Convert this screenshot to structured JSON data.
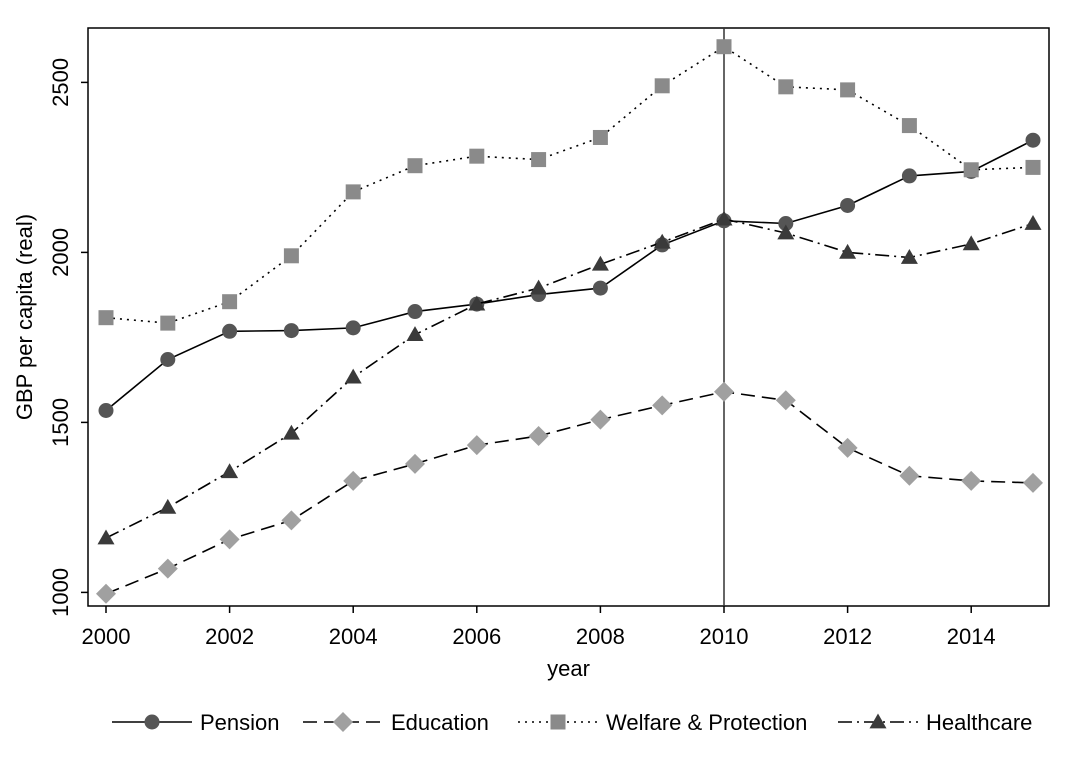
{
  "chart_data": {
    "type": "line",
    "title": "",
    "xlabel": "year",
    "ylabel": "GBP per capita (real)",
    "xlim": [
      2000,
      2015.2
    ],
    "ylim": [
      960,
      2660
    ],
    "x_ticks": [
      2000,
      2002,
      2004,
      2006,
      2008,
      2010,
      2012,
      2014
    ],
    "y_ticks": [
      1000,
      1500,
      2000,
      2500
    ],
    "vertical_reference_line": 2010,
    "grid": false,
    "legend_position": "bottom",
    "x": [
      2000,
      2001,
      2002,
      2003,
      2004,
      2005,
      2006,
      2007,
      2008,
      2009,
      2010,
      2011,
      2012,
      2013,
      2014,
      2015
    ],
    "series": [
      {
        "name": "Pension",
        "marker": "circle",
        "dash": "solid",
        "color": "#555555",
        "values": [
          1535,
          1685,
          1768,
          1770,
          1778,
          1826,
          1848,
          1876,
          1895,
          2022,
          2093,
          2085,
          2138,
          2225,
          2238,
          2330
        ]
      },
      {
        "name": "Education",
        "marker": "diamond",
        "dash": "dash",
        "color": "#a0a0a0",
        "values": [
          996,
          1070,
          1156,
          1212,
          1328,
          1378,
          1433,
          1460,
          1508,
          1550,
          1590,
          1565,
          1425,
          1343,
          1328,
          1322
        ]
      },
      {
        "name": "Welfare & Protection",
        "marker": "square",
        "dash": "dot",
        "color": "#8a8a8a",
        "values": [
          1808,
          1792,
          1855,
          1990,
          2178,
          2255,
          2283,
          2273,
          2338,
          2490,
          2605,
          2487,
          2478,
          2373,
          2243,
          2250
        ]
      },
      {
        "name": "Healthcare",
        "marker": "triangle",
        "dash": "dashdot",
        "color": "#3a3a3a",
        "values": [
          1160,
          1250,
          1355,
          1468,
          1633,
          1758,
          1848,
          1895,
          1965,
          2030,
          2098,
          2057,
          2000,
          1985,
          2025,
          2085
        ]
      }
    ]
  }
}
